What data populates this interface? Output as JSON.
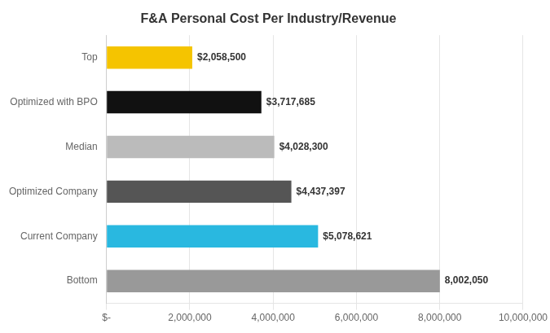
{
  "chart_data": {
    "type": "bar",
    "orientation": "horizontal",
    "title": "F&A Personal Cost Per Industry/Revenue",
    "categories": [
      "Bottom",
      "Current Company",
      "Optimized Company",
      "Median",
      "Optimized with BPO",
      "Top"
    ],
    "values": [
      8002050,
      5078621,
      4437397,
      4028300,
      3717685,
      2058500
    ],
    "value_labels": [
      "8,002,050",
      "$5,078,621",
      "$4,437,397",
      "$4,028,300",
      "$3,717,685",
      "$2,058,500"
    ],
    "data_labels": true,
    "colors": [
      "#999999",
      "#29B8E0",
      "#555555",
      "#BBBBBB",
      "#111111",
      "#F5C400"
    ],
    "xlim": [
      0,
      10000000
    ],
    "xticks": [
      {
        "value": 0,
        "label": "$-"
      },
      {
        "value": 2000000,
        "label": "2,000,000"
      },
      {
        "value": 4000000,
        "label": "4,000,000"
      },
      {
        "value": 6000000,
        "label": "6,000,000"
      },
      {
        "value": 8000000,
        "label": "8,000,000"
      },
      {
        "value": 10000000,
        "label": "10,000,000"
      }
    ],
    "grid": true
  }
}
